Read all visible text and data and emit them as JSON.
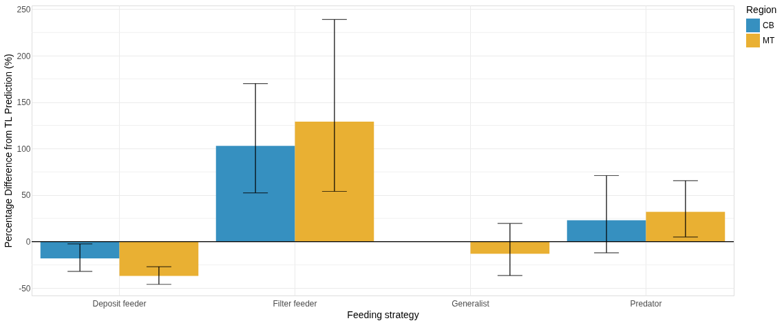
{
  "chart_data": {
    "type": "bar",
    "xlabel": "Feeding strategy",
    "ylabel": "Percentage Difference from TL Prediction (%)",
    "legend_title": "Region",
    "categories": [
      "Deposit feeder",
      "Filter feeder",
      "Generalist",
      "Predator"
    ],
    "series": [
      {
        "name": "CB",
        "color": "#3690c0",
        "values": [
          -18,
          103,
          null,
          23
        ],
        "errors": [
          [
            -32,
            -2.5
          ],
          [
            52.5,
            170
          ],
          null,
          [
            -12,
            71
          ]
        ]
      },
      {
        "name": "MT",
        "color": "#e9b033",
        "values": [
          -37,
          129,
          -13,
          32
        ],
        "errors": [
          [
            -46,
            -27
          ],
          [
            54,
            239
          ],
          [
            -36.5,
            19.5
          ],
          [
            5,
            65.5
          ]
        ]
      }
    ],
    "ylim": [
      -58,
      254
    ],
    "yticks": [
      -50,
      {
        "value": -25,
        "label": null
      },
      0,
      {
        "value": 25,
        "label": null
      },
      50,
      {
        "value": 75,
        "label": null
      },
      100,
      {
        "value": 125,
        "label": null
      },
      150,
      {
        "value": 175,
        "label": null
      },
      200,
      {
        "value": 225,
        "label": null
      },
      250
    ],
    "ref_lines": [
      {
        "axis": "y",
        "value": 0,
        "color": "#000000"
      }
    ],
    "grid": true,
    "legend": "right"
  }
}
